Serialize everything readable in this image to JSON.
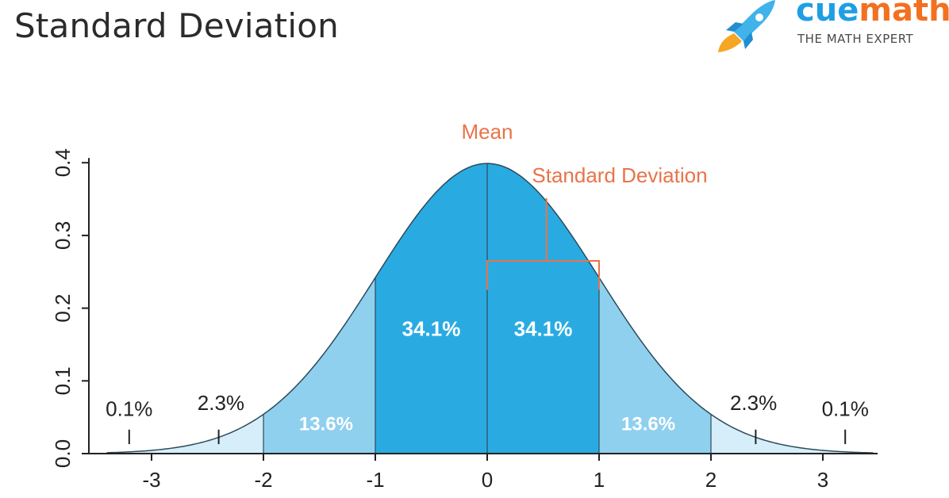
{
  "page_title": "Standard Deviation",
  "brand": {
    "name_part1": "cue",
    "name_part2": "math",
    "tagline": "THE MATH EXPERT"
  },
  "colors": {
    "inner": "#29abe2",
    "middle": "#8fd0ef",
    "tail": "#d6eef9",
    "annotation": "#e8744a",
    "axis": "#222222"
  },
  "chart_data": {
    "type": "area",
    "title": "",
    "xlabel": "",
    "ylabel": "",
    "xlim": [
      -3.4,
      3.45
    ],
    "ylim": [
      0,
      0.4
    ],
    "x_ticks": [
      -3,
      -2,
      -1,
      0,
      1,
      2,
      3
    ],
    "y_ticks": [
      0.0,
      0.1,
      0.2,
      0.3,
      0.4
    ],
    "y_tick_labels": [
      "0.0",
      "0.1",
      "0.2",
      "0.3",
      "0.4"
    ],
    "regions": [
      {
        "from": -1,
        "to": 0,
        "label": "34.1%"
      },
      {
        "from": 0,
        "to": 1,
        "label": "34.1%"
      },
      {
        "from": -2,
        "to": -1,
        "label": "13.6%"
      },
      {
        "from": 1,
        "to": 2,
        "label": "13.6%"
      },
      {
        "from": -3,
        "to": -2,
        "label": "2.3%"
      },
      {
        "from": 2,
        "to": 3,
        "label": "2.3%"
      },
      {
        "from": -3.4,
        "to": -3,
        "label": "0.1%"
      },
      {
        "from": 3,
        "to": 3.45,
        "label": "0.1%"
      }
    ],
    "annotations": {
      "mean": "Mean",
      "std_dev": "Standard Deviation"
    }
  }
}
